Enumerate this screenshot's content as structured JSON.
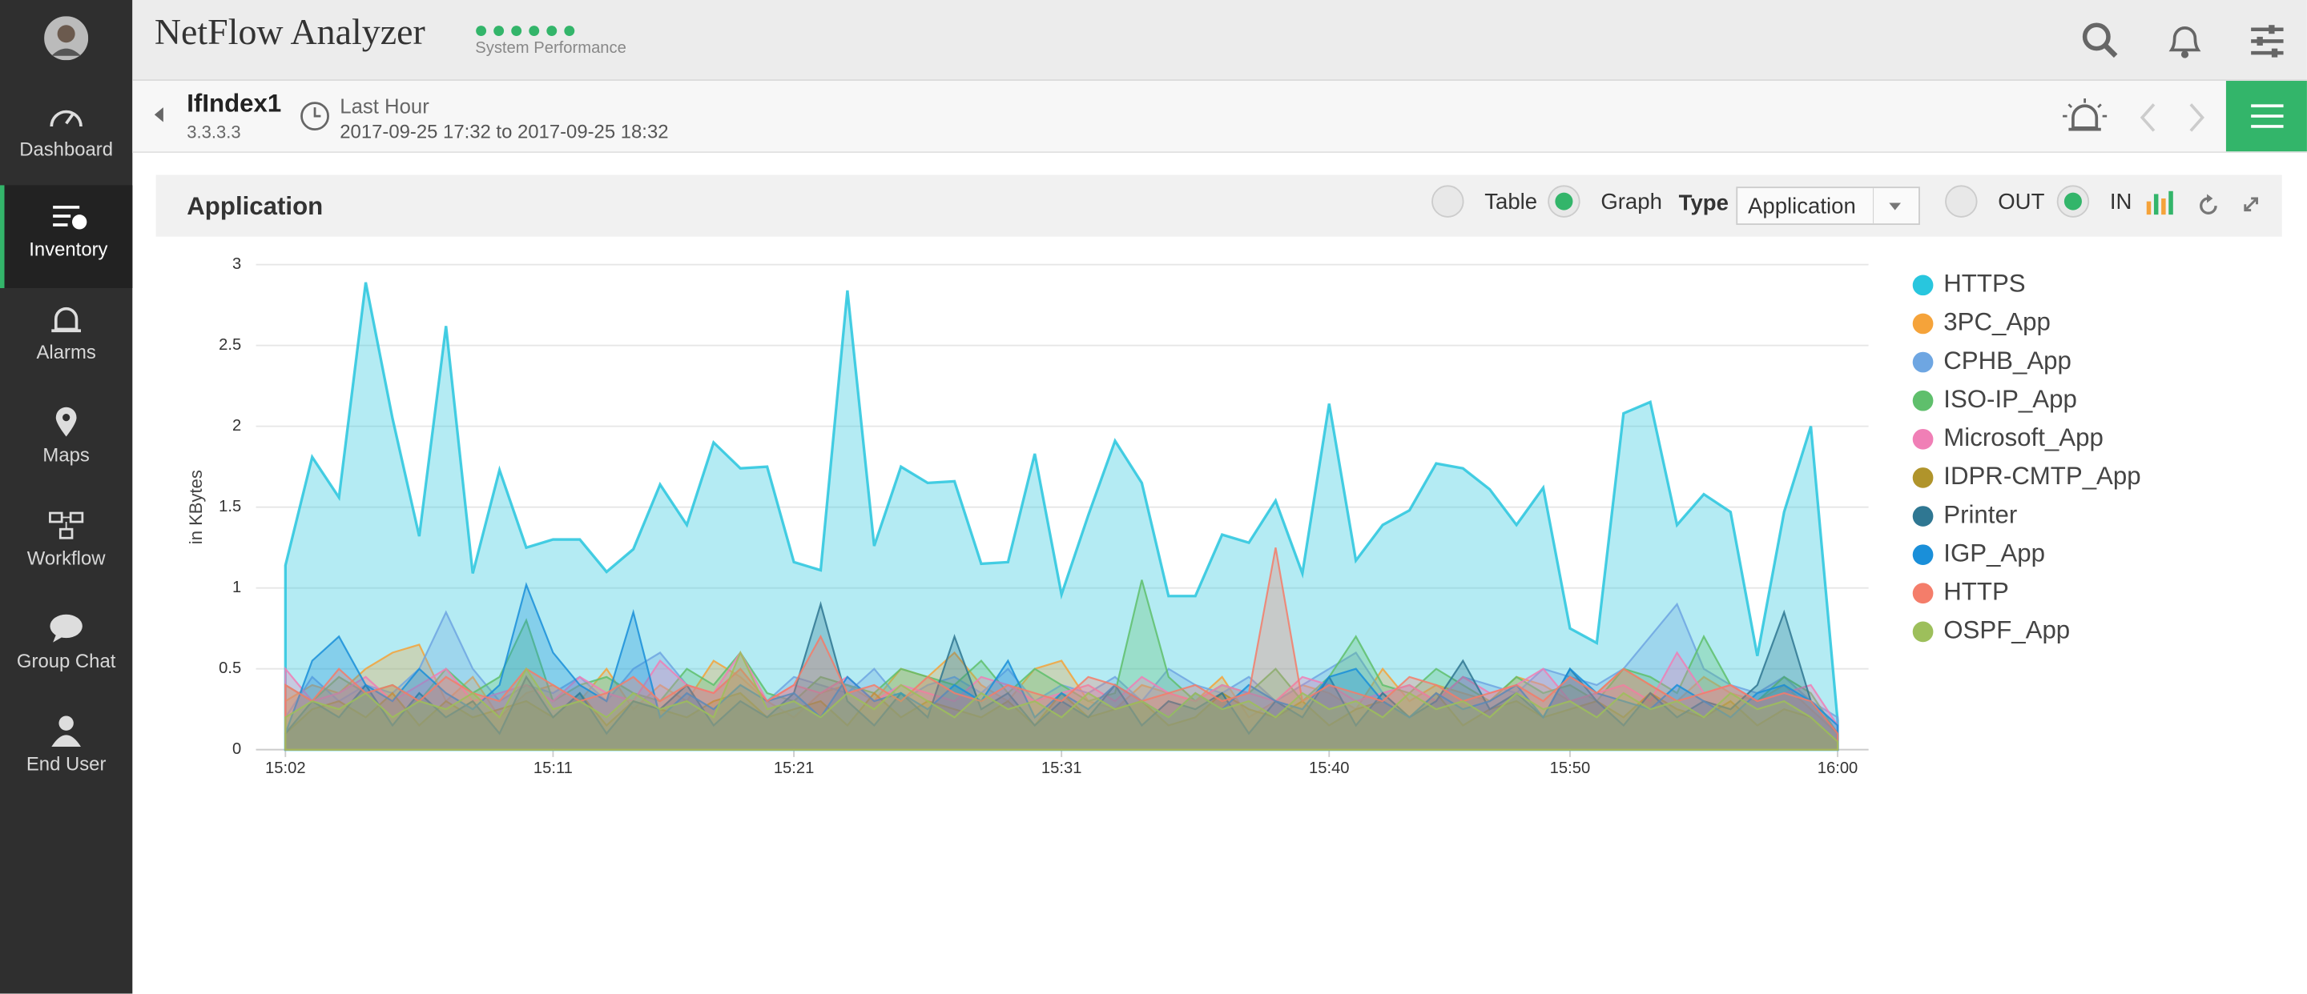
{
  "sidebar": {
    "items": [
      "Dashboard",
      "Inventory",
      "Alarms",
      "Maps",
      "Workflow",
      "Group Chat",
      "End User"
    ]
  },
  "header": {
    "title": "NetFlow Analyzer",
    "status": "System Performance"
  },
  "context": {
    "interface": "IfIndex1",
    "ip": "3.3.3.3",
    "period": "Last Hour",
    "range": "2017-09-25 17:32 to 2017-09-25 18:32"
  },
  "panel": {
    "title": "Application",
    "view_table": "Table",
    "view_graph": "Graph",
    "type_label": "Type",
    "type_value": "Application",
    "out": "OUT",
    "in": "IN"
  },
  "chart_data": {
    "type": "area",
    "y_label": "in KBytes",
    "categories": [
      "15:02",
      null,
      null,
      null,
      null,
      null,
      null,
      null,
      null,
      null,
      "15:11",
      null,
      null,
      null,
      null,
      null,
      null,
      null,
      null,
      "15:21",
      null,
      null,
      null,
      null,
      null,
      null,
      null,
      null,
      null,
      "15:31",
      null,
      null,
      null,
      null,
      null,
      null,
      null,
      null,
      null,
      "15:40",
      null,
      null,
      null,
      null,
      null,
      null,
      null,
      null,
      "15:50",
      null,
      null,
      null,
      null,
      null,
      null,
      null,
      null,
      null,
      "16:00"
    ],
    "ylim": [
      0,
      3
    ],
    "yticks": [
      0,
      0.5,
      1,
      1.5,
      2,
      2.5,
      3
    ],
    "grid": true,
    "series": [
      {
        "name": "HTTPS",
        "color": "#28c6de",
        "values": [
          1.14,
          1.81,
          1.56,
          2.89,
          2.05,
          1.32,
          2.62,
          1.09,
          1.73,
          1.25,
          1.3,
          1.3,
          1.1,
          1.24,
          1.64,
          1.39,
          1.9,
          1.74,
          1.75,
          1.16,
          1.11,
          2.84,
          1.26,
          1.75,
          1.65,
          1.66,
          1.15,
          1.16,
          1.83,
          0.96,
          1.45,
          1.91,
          1.65,
          0.95,
          0.95,
          1.33,
          1.28,
          1.54,
          1.09,
          2.14,
          1.17,
          1.39,
          1.48,
          1.77,
          1.74,
          1.61,
          1.39,
          1.62,
          0.75,
          0.66,
          2.08,
          2.15,
          1.39,
          1.58,
          1.47,
          0.58,
          1.47,
          2.0,
          0.18
        ]
      },
      {
        "name": "3PC_App",
        "color": "#f5a33a",
        "values": [
          0.3,
          0.4,
          0.35,
          0.5,
          0.6,
          0.65,
          0.3,
          0.45,
          0.2,
          0.35,
          0.4,
          0.3,
          0.5,
          0.25,
          0.4,
          0.3,
          0.55,
          0.45,
          0.3,
          0.2,
          0.35,
          0.4,
          0.3,
          0.5,
          0.45,
          0.6,
          0.4,
          0.3,
          0.5,
          0.55,
          0.3,
          0.25,
          0.4,
          0.35,
          0.3,
          0.45,
          0.2,
          0.3,
          0.4,
          0.35,
          0.25,
          0.5,
          0.3,
          0.4,
          0.35,
          0.3,
          0.45,
          0.4,
          0.3,
          0.35,
          0.5,
          0.4,
          0.3,
          0.45,
          0.35,
          0.3,
          0.4,
          0.25,
          0.1
        ]
      },
      {
        "name": "CPHB_App",
        "color": "#6ea6e2",
        "values": [
          0.2,
          0.45,
          0.3,
          0.4,
          0.35,
          0.5,
          0.85,
          0.5,
          0.3,
          0.4,
          0.35,
          0.45,
          0.3,
          0.5,
          0.6,
          0.4,
          0.35,
          0.5,
          0.3,
          0.45,
          0.4,
          0.35,
          0.5,
          0.3,
          0.4,
          0.45,
          0.35,
          0.5,
          0.3,
          0.4,
          0.35,
          0.45,
          0.3,
          0.5,
          0.4,
          0.35,
          0.45,
          0.3,
          0.4,
          0.5,
          0.6,
          0.35,
          0.4,
          0.3,
          0.45,
          0.4,
          0.35,
          0.5,
          0.45,
          0.4,
          0.5,
          0.7,
          0.9,
          0.5,
          0.4,
          0.35,
          0.45,
          0.3,
          0.2
        ]
      },
      {
        "name": "ISO-IP_App",
        "color": "#5fbf6c",
        "values": [
          0.4,
          0.3,
          0.45,
          0.35,
          0.4,
          0.3,
          0.5,
          0.35,
          0.45,
          0.8,
          0.3,
          0.4,
          0.45,
          0.35,
          0.3,
          0.5,
          0.4,
          0.6,
          0.35,
          0.3,
          0.45,
          0.4,
          0.35,
          0.5,
          0.45,
          0.4,
          0.55,
          0.35,
          0.5,
          0.4,
          0.3,
          0.35,
          1.05,
          0.45,
          0.3,
          0.4,
          0.35,
          0.5,
          0.3,
          0.45,
          0.7,
          0.4,
          0.35,
          0.5,
          0.4,
          0.3,
          0.45,
          0.35,
          0.4,
          0.3,
          0.5,
          0.45,
          0.35,
          0.7,
          0.4,
          0.3,
          0.45,
          0.35,
          0.1
        ]
      },
      {
        "name": "Microsoft_App",
        "color": "#f07fb6",
        "values": [
          0.5,
          0.3,
          0.35,
          0.45,
          0.3,
          0.4,
          0.5,
          0.3,
          0.35,
          0.4,
          0.3,
          0.45,
          0.35,
          0.3,
          0.55,
          0.4,
          0.35,
          0.6,
          0.3,
          0.4,
          0.35,
          0.45,
          0.3,
          0.4,
          0.35,
          0.3,
          0.45,
          0.4,
          0.3,
          0.35,
          0.4,
          0.3,
          0.45,
          0.35,
          0.3,
          0.4,
          0.35,
          0.3,
          0.45,
          0.4,
          0.3,
          0.35,
          0.4,
          0.3,
          0.45,
          0.35,
          0.4,
          0.5,
          0.3,
          0.35,
          0.4,
          0.3,
          0.6,
          0.35,
          0.4,
          0.3,
          0.35,
          0.4,
          0.15
        ]
      },
      {
        "name": "IDPR-CMTP_App",
        "color": "#b0942b",
        "values": [
          0.1,
          0.25,
          0.3,
          0.2,
          0.35,
          0.15,
          0.3,
          0.2,
          0.25,
          0.3,
          0.2,
          0.35,
          0.15,
          0.3,
          0.25,
          0.2,
          0.3,
          0.35,
          0.2,
          0.25,
          0.3,
          0.15,
          0.35,
          0.2,
          0.3,
          0.25,
          0.2,
          0.3,
          0.15,
          0.35,
          0.2,
          0.25,
          0.3,
          0.15,
          0.2,
          0.35,
          0.25,
          0.2,
          0.3,
          0.15,
          0.25,
          0.3,
          0.2,
          0.35,
          0.15,
          0.25,
          0.3,
          0.2,
          0.25,
          0.3,
          0.2,
          0.35,
          0.25,
          0.2,
          0.3,
          0.15,
          0.25,
          0.2,
          0.05
        ]
      },
      {
        "name": "Printer",
        "color": "#2f7792",
        "values": [
          0.1,
          0.3,
          0.2,
          0.4,
          0.15,
          0.35,
          0.2,
          0.3,
          0.1,
          0.45,
          0.2,
          0.35,
          0.1,
          0.3,
          0.25,
          0.4,
          0.15,
          0.3,
          0.2,
          0.35,
          0.9,
          0.3,
          0.15,
          0.35,
          0.2,
          0.7,
          0.25,
          0.35,
          0.15,
          0.3,
          0.2,
          0.4,
          0.15,
          0.3,
          0.25,
          0.35,
          0.1,
          0.3,
          0.2,
          0.45,
          0.15,
          0.35,
          0.2,
          0.3,
          0.55,
          0.25,
          0.35,
          0.2,
          0.5,
          0.3,
          0.15,
          0.35,
          0.2,
          0.3,
          0.25,
          0.4,
          0.85,
          0.3,
          0.1
        ]
      },
      {
        "name": "IGP_App",
        "color": "#1a8fd9",
        "values": [
          0.1,
          0.55,
          0.7,
          0.4,
          0.3,
          0.5,
          0.35,
          0.25,
          0.4,
          1.02,
          0.6,
          0.4,
          0.3,
          0.85,
          0.2,
          0.35,
          0.25,
          0.4,
          0.3,
          0.35,
          0.2,
          0.45,
          0.3,
          0.35,
          0.25,
          0.4,
          0.3,
          0.55,
          0.2,
          0.35,
          0.25,
          0.4,
          0.3,
          0.2,
          0.35,
          0.25,
          0.4,
          0.3,
          0.25,
          0.45,
          0.5,
          0.3,
          0.2,
          0.35,
          0.25,
          0.3,
          0.4,
          0.2,
          0.5,
          0.35,
          0.3,
          0.25,
          0.4,
          0.3,
          0.2,
          0.35,
          0.4,
          0.3,
          0.15
        ]
      },
      {
        "name": "HTTP",
        "color": "#f47d6a",
        "values": [
          0.4,
          0.3,
          0.5,
          0.35,
          0.4,
          0.3,
          0.45,
          0.35,
          0.3,
          0.5,
          0.4,
          0.3,
          0.35,
          0.45,
          0.3,
          0.4,
          0.35,
          0.5,
          0.3,
          0.4,
          0.7,
          0.35,
          0.4,
          0.3,
          0.45,
          0.35,
          0.3,
          0.4,
          0.35,
          0.3,
          0.45,
          0.4,
          0.3,
          0.35,
          0.4,
          0.3,
          0.35,
          1.25,
          0.3,
          0.4,
          0.35,
          0.3,
          0.45,
          0.4,
          0.3,
          0.35,
          0.4,
          0.3,
          0.45,
          0.35,
          0.5,
          0.4,
          0.3,
          0.35,
          0.4,
          0.3,
          0.35,
          0.3,
          0.1
        ]
      },
      {
        "name": "OSPF_App",
        "color": "#9dbf5b",
        "values": [
          0.2,
          0.3,
          0.25,
          0.35,
          0.2,
          0.3,
          0.25,
          0.35,
          0.2,
          0.5,
          0.25,
          0.3,
          0.2,
          0.35,
          0.25,
          0.3,
          0.2,
          0.6,
          0.25,
          0.3,
          0.2,
          0.35,
          0.25,
          0.4,
          0.3,
          0.2,
          0.35,
          0.25,
          0.3,
          0.2,
          0.35,
          0.25,
          0.3,
          0.2,
          0.35,
          0.25,
          0.3,
          0.2,
          0.35,
          0.25,
          0.3,
          0.2,
          0.35,
          0.25,
          0.3,
          0.2,
          0.35,
          0.25,
          0.3,
          0.2,
          0.35,
          0.25,
          0.3,
          0.2,
          0.35,
          0.25,
          0.3,
          0.2,
          0.05
        ]
      }
    ]
  }
}
